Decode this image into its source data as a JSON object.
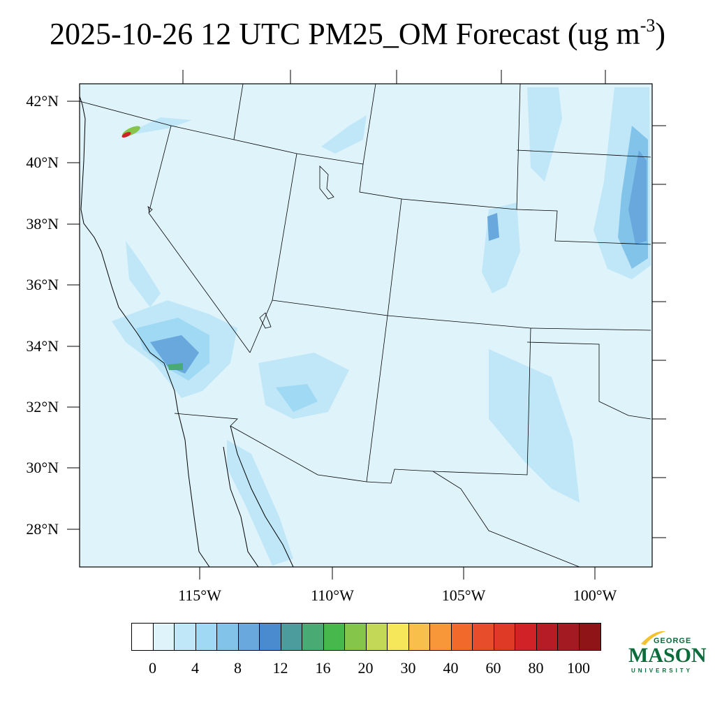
{
  "title": {
    "main": "2025-10-26 12 UTC PM25_OM Forecast (ug m",
    "exp": "-3",
    "close": ")"
  },
  "lat_labels": [
    "42°N",
    "40°N",
    "38°N",
    "36°N",
    "34°N",
    "32°N",
    "30°N",
    "28°N"
  ],
  "lon_labels": [
    "115°W",
    "110°W",
    "105°W",
    "100°W"
  ],
  "colorbar": {
    "colors": [
      "#ffffff",
      "#dff3fb",
      "#bfe7f8",
      "#9fd9f4",
      "#82c3ea",
      "#68a8dd",
      "#4a8bd0",
      "#4c9c9e",
      "#4aaa74",
      "#47b84b",
      "#85c54a",
      "#c2d856",
      "#f6e65a",
      "#f8c04a",
      "#f8973a",
      "#f26a2b",
      "#e74d2a",
      "#de3a26",
      "#d12228",
      "#b51c25",
      "#a41a22",
      "#8e1418"
    ],
    "labels": [
      "0",
      "4",
      "8",
      "12",
      "16",
      "20",
      "30",
      "40",
      "60",
      "80",
      "100"
    ]
  },
  "logo": {
    "george": "GEORGE",
    "mason": "MASON",
    "university": "UNIVERSITY"
  }
}
